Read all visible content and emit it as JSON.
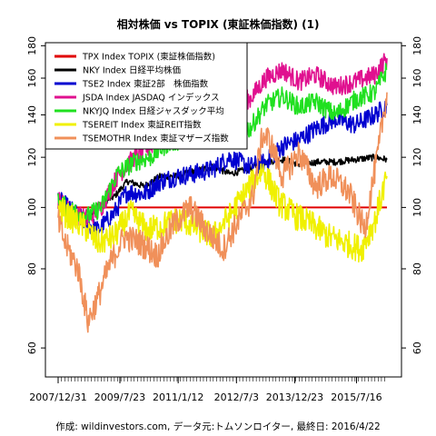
{
  "chart_data": {
    "type": "line",
    "title": "相対株価 vs TOPIX (東証株価指数) (1)",
    "xlabel": "",
    "ylabel": "",
    "footer": "作成: wildinvestors.com, データ元:トムソンロイター, 最終日: 2016/4/22",
    "x_start": "2007/12/31",
    "x_end": "2016/4/22",
    "x_tick_labels": [
      "2007/12/31",
      "2009/7/23",
      "2011/1/12",
      "2012/7/3",
      "2013/12/23",
      "2015/7/16"
    ],
    "y_tick_labels": [
      "60",
      "80",
      "100",
      "120",
      "140",
      "160",
      "180"
    ],
    "ylim": [
      54,
      182
    ],
    "log_scale": true,
    "grid": false,
    "legend_position": "top-left",
    "reference_line": 100,
    "series": [
      {
        "name": "TPX Index TOPIX (東証株価指数)",
        "color": "#e00000",
        "x": [
          "2007/12/31",
          "2016/4/22"
        ],
        "values": [
          100,
          100
        ]
      },
      {
        "name": "NKY Index 日経平均株価",
        "color": "#000000",
        "x": [
          "2007/12/31",
          "2008/6/1",
          "2008/10/1",
          "2009/1/1",
          "2009/6/1",
          "2009/10/1",
          "2010/3/1",
          "2010/8/1",
          "2011/1/1",
          "2011/6/1",
          "2011/12/1",
          "2012/5/1",
          "2012/11/1",
          "2013/4/1",
          "2013/9/1",
          "2014/2/1",
          "2014/8/1",
          "2015/1/1",
          "2015/7/1",
          "2016/1/1",
          "2016/4/22"
        ],
        "values": [
          100,
          99,
          96,
          101,
          104,
          110,
          108,
          112,
          112,
          114,
          116,
          113,
          115,
          118,
          119,
          117,
          118,
          118,
          119,
          120,
          119
        ]
      },
      {
        "name": "TSE2 Index 東証2部　株価指数",
        "color": "#0000d0",
        "x": [
          "2007/12/31",
          "2008/4/1",
          "2008/9/1",
          "2009/1/1",
          "2009/6/1",
          "2009/10/1",
          "2010/3/1",
          "2010/8/1",
          "2011/1/1",
          "2011/6/1",
          "2011/12/1",
          "2012/5/1",
          "2012/11/1",
          "2013/4/1",
          "2013/9/1",
          "2014/2/1",
          "2014/8/1",
          "2015/1/1",
          "2015/7/1",
          "2016/1/1",
          "2016/4/22"
        ],
        "values": [
          103,
          100,
          95,
          92,
          98,
          106,
          105,
          110,
          112,
          113,
          115,
          120,
          116,
          118,
          125,
          128,
          134,
          138,
          135,
          140,
          145
        ]
      },
      {
        "name": "JSDA Index JASDAQ インデックス",
        "color": "#e0108f",
        "x": [
          "2007/12/31",
          "2008/5/1",
          "2008/10/1",
          "2009/2/1",
          "2009/7/1",
          "2009/12/1",
          "2010/5/1",
          "2010/10/1",
          "2011/3/1",
          "2011/8/1",
          "2012/1/1",
          "2012/6/1",
          "2012/11/1",
          "2013/4/1",
          "2013/9/1",
          "2014/2/1",
          "2014/7/1",
          "2015/1/1",
          "2015/7/1",
          "2016/1/1",
          "2016/4/22"
        ],
        "values": [
          103,
          98,
          96,
          100,
          112,
          120,
          125,
          130,
          133,
          140,
          142,
          150,
          148,
          160,
          165,
          158,
          162,
          155,
          158,
          162,
          172
        ]
      },
      {
        "name": "NKYJQ Index 日経ジャスダック平均",
        "color": "#20e020",
        "x": [
          "2007/12/31",
          "2008/5/1",
          "2008/10/1",
          "2009/2/1",
          "2009/7/1",
          "2009/12/1",
          "2010/5/1",
          "2010/10/1",
          "2011/3/1",
          "2011/8/1",
          "2012/1/1",
          "2012/6/1",
          "2012/11/1",
          "2013/4/1",
          "2013/9/1",
          "2014/2/1",
          "2014/7/1",
          "2015/1/1",
          "2015/7/1",
          "2016/1/1",
          "2016/4/22"
        ],
        "values": [
          102,
          99,
          97,
          100,
          113,
          118,
          120,
          126,
          128,
          130,
          132,
          136,
          133,
          145,
          150,
          144,
          147,
          140,
          148,
          152,
          165
        ]
      },
      {
        "name": "TSEREIT Index 東証REIT指数",
        "color": "#f0f000",
        "x": [
          "2007/12/31",
          "2008/4/1",
          "2008/9/1",
          "2009/1/1",
          "2009/6/1",
          "2009/11/1",
          "2010/4/1",
          "2010/9/1",
          "2011/2/1",
          "2011/7/1",
          "2011/12/1",
          "2012/5/1",
          "2012/10/1",
          "2013/3/1",
          "2013/8/1",
          "2014/1/1",
          "2014/6/1",
          "2014/11/1",
          "2015/4/1",
          "2015/9/1",
          "2016/1/1",
          "2016/4/22"
        ],
        "values": [
          100,
          97,
          93,
          88,
          90,
          98,
          92,
          94,
          96,
          93,
          90,
          97,
          106,
          115,
          102,
          97,
          94,
          90,
          88,
          86,
          95,
          112
        ]
      },
      {
        "name": "TSEMOTHR Index 東証マザーズ指数",
        "color": "#f0905a",
        "x": [
          "2007/12/31",
          "2008/3/1",
          "2008/7/1",
          "2008/10/1",
          "2009/1/1",
          "2009/5/1",
          "2009/9/1",
          "2010/2/1",
          "2010/7/1",
          "2010/12/1",
          "2011/5/1",
          "2011/10/1",
          "2012/3/1",
          "2012/8/1",
          "2012/12/1",
          "2013/3/1",
          "2013/5/1",
          "2013/9/1",
          "2014/2/1",
          "2014/7/1",
          "2014/12/1",
          "2015/5/1",
          "2015/10/1",
          "2016/2/1",
          "2016/4/22"
        ],
        "values": [
          95,
          88,
          80,
          66,
          72,
          82,
          90,
          88,
          84,
          94,
          100,
          92,
          86,
          96,
          104,
          130,
          128,
          112,
          122,
          108,
          112,
          106,
          92,
          122,
          152
        ]
      }
    ]
  }
}
